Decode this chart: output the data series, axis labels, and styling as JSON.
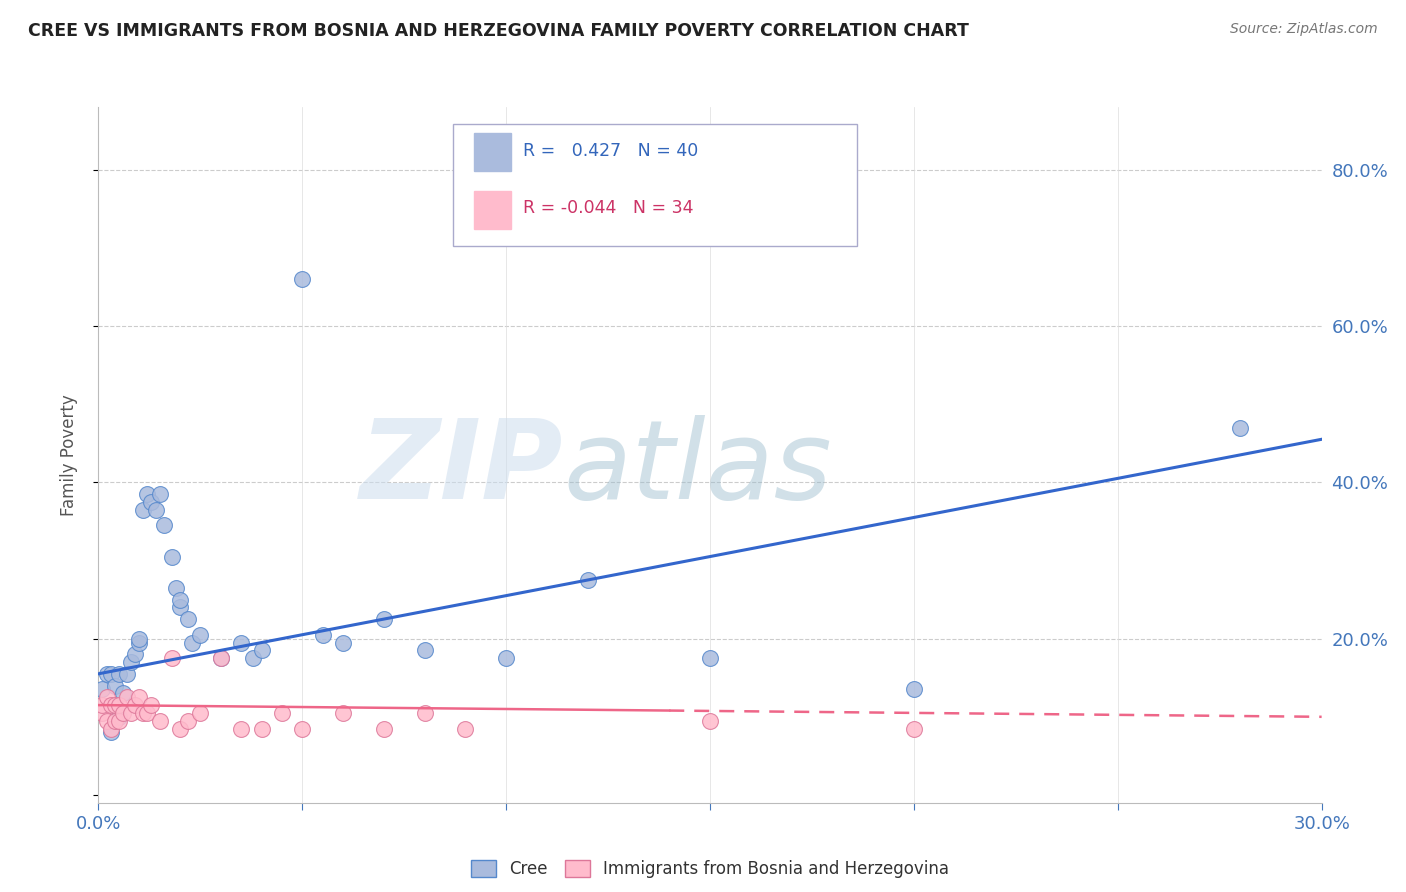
{
  "title": "CREE VS IMMIGRANTS FROM BOSNIA AND HERZEGOVINA FAMILY POVERTY CORRELATION CHART",
  "source": "Source: ZipAtlas.com",
  "ylabel": "Family Poverty",
  "xlim": [
    0.0,
    0.3
  ],
  "ylim": [
    -0.01,
    0.88
  ],
  "ytick_values": [
    0.0,
    0.2,
    0.4,
    0.6,
    0.8
  ],
  "cree_color": "#AABBDD",
  "cree_edge_color": "#5588CC",
  "bosnia_color": "#FFBBCC",
  "bosnia_edge_color": "#DD7799",
  "regression_cree_color": "#3366CC",
  "regression_bosnia_color": "#EE6688",
  "cree_points": [
    [
      0.001,
      0.135
    ],
    [
      0.002,
      0.155
    ],
    [
      0.003,
      0.155
    ],
    [
      0.003,
      0.08
    ],
    [
      0.004,
      0.14
    ],
    [
      0.005,
      0.155
    ],
    [
      0.005,
      0.1
    ],
    [
      0.006,
      0.13
    ],
    [
      0.007,
      0.155
    ],
    [
      0.008,
      0.17
    ],
    [
      0.009,
      0.18
    ],
    [
      0.01,
      0.195
    ],
    [
      0.01,
      0.2
    ],
    [
      0.011,
      0.365
    ],
    [
      0.012,
      0.385
    ],
    [
      0.013,
      0.375
    ],
    [
      0.014,
      0.365
    ],
    [
      0.015,
      0.385
    ],
    [
      0.016,
      0.345
    ],
    [
      0.018,
      0.305
    ],
    [
      0.019,
      0.265
    ],
    [
      0.02,
      0.24
    ],
    [
      0.02,
      0.25
    ],
    [
      0.022,
      0.225
    ],
    [
      0.023,
      0.195
    ],
    [
      0.025,
      0.205
    ],
    [
      0.03,
      0.175
    ],
    [
      0.035,
      0.195
    ],
    [
      0.038,
      0.175
    ],
    [
      0.04,
      0.185
    ],
    [
      0.05,
      0.66
    ],
    [
      0.055,
      0.205
    ],
    [
      0.06,
      0.195
    ],
    [
      0.07,
      0.225
    ],
    [
      0.08,
      0.185
    ],
    [
      0.1,
      0.175
    ],
    [
      0.12,
      0.275
    ],
    [
      0.15,
      0.175
    ],
    [
      0.2,
      0.135
    ],
    [
      0.28,
      0.47
    ]
  ],
  "bosnia_points": [
    [
      0.001,
      0.105
    ],
    [
      0.001,
      0.115
    ],
    [
      0.002,
      0.095
    ],
    [
      0.002,
      0.125
    ],
    [
      0.003,
      0.085
    ],
    [
      0.003,
      0.115
    ],
    [
      0.004,
      0.095
    ],
    [
      0.004,
      0.115
    ],
    [
      0.005,
      0.095
    ],
    [
      0.005,
      0.115
    ],
    [
      0.006,
      0.105
    ],
    [
      0.007,
      0.125
    ],
    [
      0.008,
      0.105
    ],
    [
      0.009,
      0.115
    ],
    [
      0.01,
      0.125
    ],
    [
      0.011,
      0.105
    ],
    [
      0.012,
      0.105
    ],
    [
      0.013,
      0.115
    ],
    [
      0.015,
      0.095
    ],
    [
      0.018,
      0.175
    ],
    [
      0.02,
      0.085
    ],
    [
      0.022,
      0.095
    ],
    [
      0.025,
      0.105
    ],
    [
      0.03,
      0.175
    ],
    [
      0.035,
      0.085
    ],
    [
      0.04,
      0.085
    ],
    [
      0.045,
      0.105
    ],
    [
      0.05,
      0.085
    ],
    [
      0.06,
      0.105
    ],
    [
      0.07,
      0.085
    ],
    [
      0.08,
      0.105
    ],
    [
      0.09,
      0.085
    ],
    [
      0.15,
      0.095
    ],
    [
      0.2,
      0.085
    ]
  ]
}
